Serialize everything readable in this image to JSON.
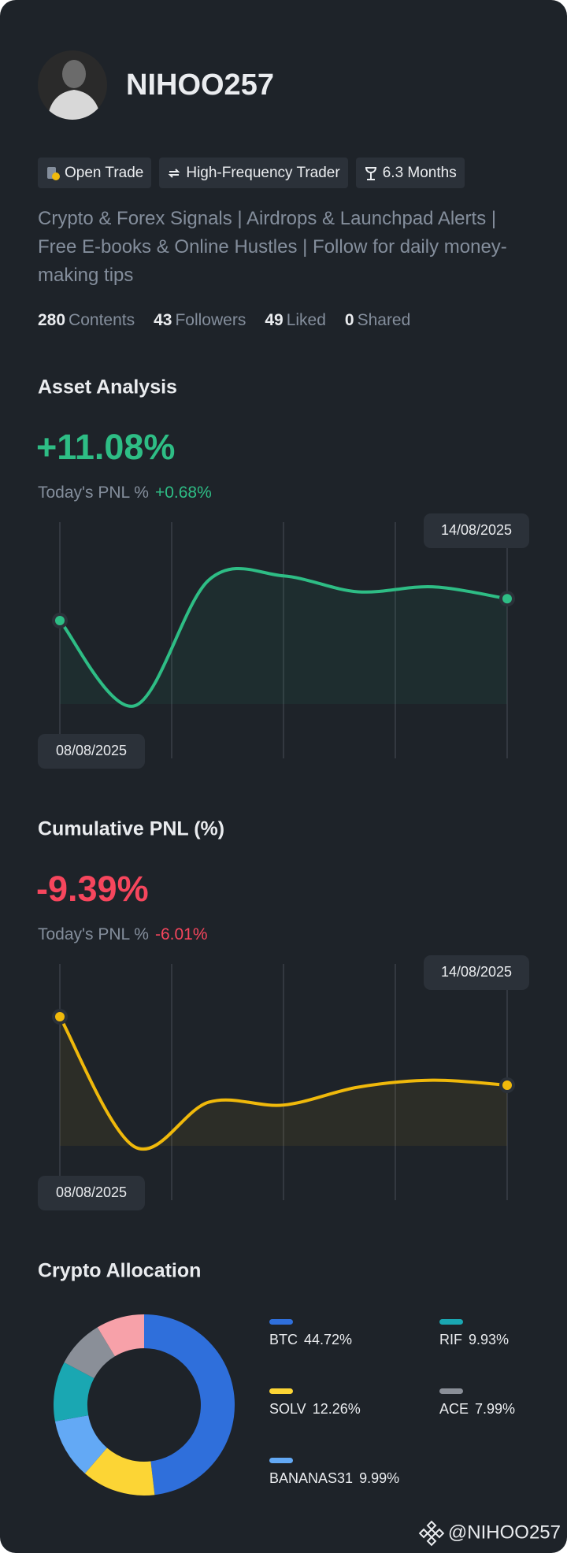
{
  "profile": {
    "name": "NIHOO257",
    "tags": [
      "Open Trade",
      "High-Frequency Trader",
      "6.3 Months"
    ],
    "bio": "Crypto & Forex Signals | Airdrops & Launchpad Alerts | Free E-books & Online Hustles | Follow for daily money-making tips",
    "stats": [
      {
        "value": 280,
        "label": "Contents"
      },
      {
        "value": 43,
        "label": "Followers"
      },
      {
        "value": 49,
        "label": "Liked"
      },
      {
        "value": 0,
        "label": "Shared"
      }
    ]
  },
  "chart_data": [
    {
      "type": "line",
      "title": "Asset Analysis",
      "headline": "+11.08%",
      "pnl_label": "Today's PNL %",
      "pnl_value": "+0.68%",
      "accent_color": "#2ebd85",
      "categories": [
        "08/08/2025",
        null,
        null,
        null,
        null,
        null,
        "14/08/2025"
      ],
      "series": [
        {
          "color": "#2ebd85",
          "values": [
            5.0,
            -3.6,
            9.1,
            9.5,
            7.9,
            8.4,
            7.2
          ]
        }
      ],
      "ylim": [
        -5,
        10
      ]
    },
    {
      "type": "line",
      "title": "Cumulative PNL (%)",
      "headline": "-9.39%",
      "pnl_label": "Today's PNL %",
      "pnl_value": "-6.01%",
      "accent_color": "#f6465d",
      "categories": [
        "08/08/2025",
        null,
        null,
        null,
        null,
        null,
        "14/08/2025"
      ],
      "series": [
        {
          "color": "#f0b90b",
          "values": [
            9.6,
            -3.5,
            1.0,
            0.7,
            2.5,
            3.2,
            2.7
          ]
        }
      ],
      "ylim": [
        -5,
        10
      ]
    },
    {
      "type": "pie",
      "title": "Crypto Allocation",
      "categories": [
        "BTC",
        "SOLV",
        "BANANAS31",
        "RIF",
        "ACE",
        null
      ],
      "values": [
        44.72,
        12.26,
        9.99,
        9.93,
        7.99,
        8
      ],
      "value_labels": [
        "44.72%",
        "12.26%",
        "9.99%",
        "9.93%",
        "7.99%",
        null
      ],
      "colors": [
        "#2f6fdb",
        "#fcd535",
        "#63a9f5",
        "#1aa7b2",
        "#8a8f98",
        "#f7a1a9"
      ]
    }
  ],
  "footer": "@NIHOO257"
}
